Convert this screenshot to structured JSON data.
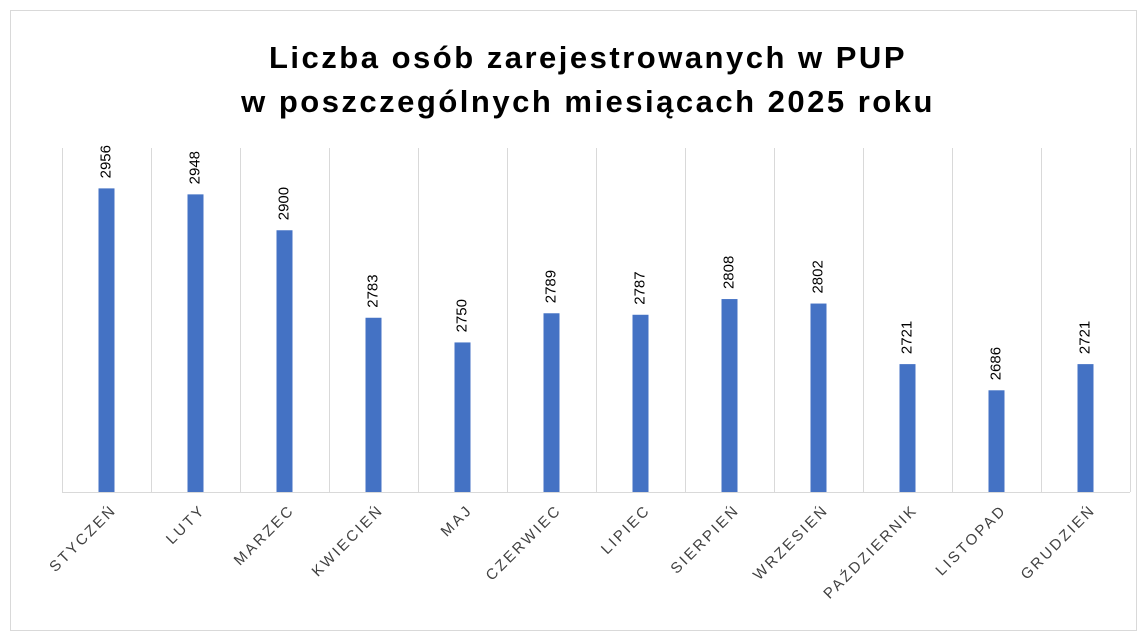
{
  "chart_data": {
    "type": "bar",
    "title": [
      "Liczba osób zarejestrowanych w PUP",
      "w poszczególnych miesiącach 2025 roku"
    ],
    "categories": [
      "STYCZEŃ",
      "LUTY",
      "MARZEC",
      "KWIECIEŃ",
      "MAJ",
      "CZERWIEC",
      "LIPIEC",
      "SIERPIEŃ",
      "WRZESIEŃ",
      "PAŹDZIERNIK",
      "LISTOPAD",
      "GRUDZIEŃ"
    ],
    "values": [
      2956,
      2948,
      2900,
      2783,
      2750,
      2789,
      2787,
      2808,
      2802,
      2721,
      2686,
      2721
    ],
    "color": "#4472c4",
    "ylim": [
      2550,
      3010
    ],
    "grid": true
  }
}
